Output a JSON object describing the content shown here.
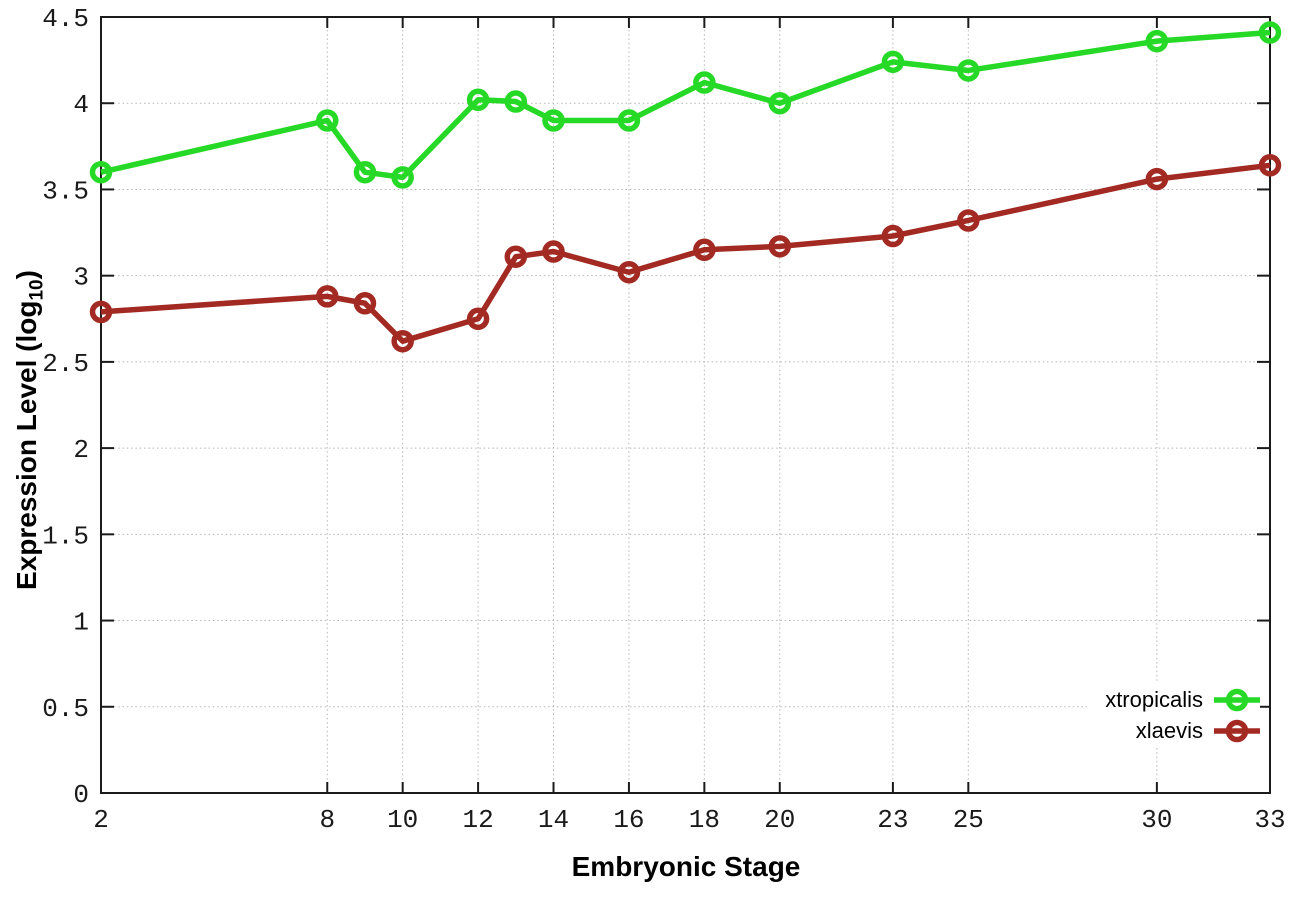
{
  "figure": {
    "background": "#ffffff",
    "border_color": "#1b1b1b",
    "grid_color": "#b5b5b5",
    "tick_label_color": "#1a1a1a",
    "axis_title_color": "#000000"
  },
  "chart_data": {
    "type": "line",
    "title": "",
    "xlabel": "Embryonic Stage",
    "ylabel": "Expression Level (log10)",
    "ylabel_parts": {
      "pre": "Expression Level (log",
      "sub": "10",
      "post": ")"
    },
    "x": [
      2,
      8,
      9,
      10,
      12,
      13,
      14,
      16,
      18,
      20,
      23,
      25,
      30,
      33
    ],
    "x_tick_labels": [
      "2",
      "8",
      "10",
      "12",
      "14",
      "16",
      "18",
      "20",
      "23",
      "25",
      "30",
      "33"
    ],
    "y_tick_labels": [
      "0",
      "0.5",
      "1",
      "1.5",
      "2",
      "2.5",
      "3",
      "3.5",
      "4",
      "4.5"
    ],
    "xlim": [
      2,
      33
    ],
    "ylim": [
      0,
      4.5
    ],
    "grid": true,
    "legend_position": "inside bottom-right",
    "series": [
      {
        "name": "xtropicalis",
        "color": "#26d926",
        "values": [
          3.6,
          3.9,
          3.6,
          3.57,
          4.02,
          4.01,
          3.9,
          3.9,
          4.12,
          4.0,
          4.24,
          4.19,
          4.36,
          4.41
        ]
      },
      {
        "name": "xlaevis",
        "color": "#a32a22",
        "values": [
          2.79,
          2.88,
          2.84,
          2.62,
          2.75,
          3.11,
          3.14,
          3.02,
          3.15,
          3.17,
          3.23,
          3.32,
          3.56,
          3.64
        ]
      }
    ]
  }
}
